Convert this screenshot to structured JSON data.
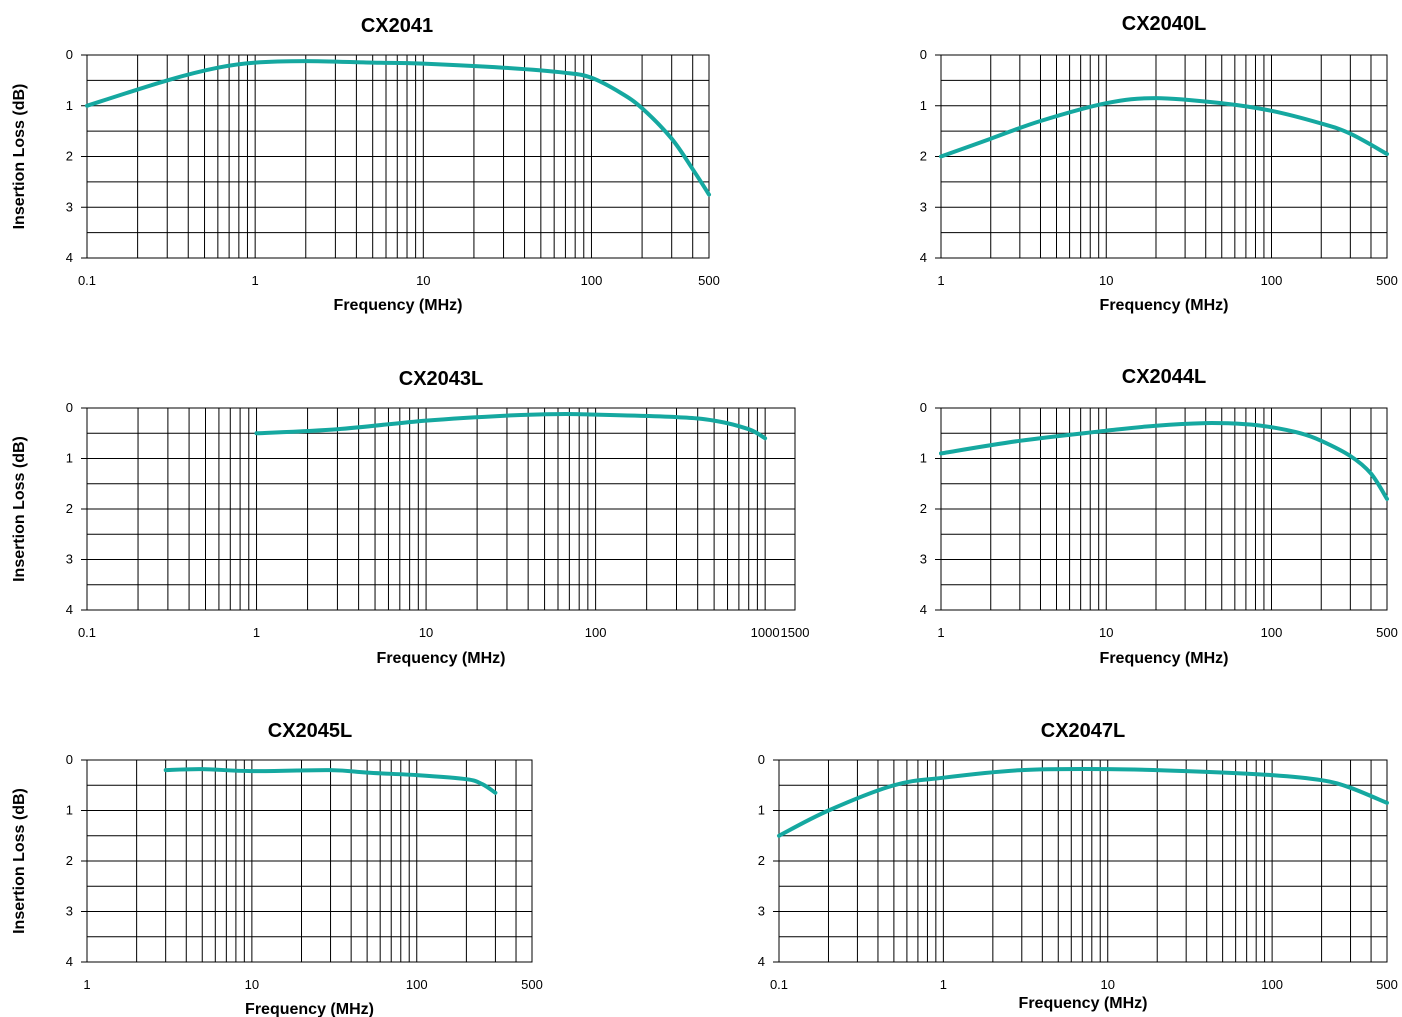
{
  "colors": {
    "line": "#15a8a0",
    "grid": "#000000"
  },
  "chart_data": [
    {
      "type": "line",
      "title": "CX2041",
      "xlabel": "Frequency (MHz)",
      "ylabel": "Insertion Loss (dB)",
      "x_scale": "log",
      "xlim": [
        0.1,
        500
      ],
      "ylim": [
        0,
        4
      ],
      "y_inverted": true,
      "grid": true,
      "x_tick_labels": [
        "0.1",
        "1",
        "10",
        "100",
        "500"
      ],
      "y_tick_labels": [
        "0",
        "1",
        "2",
        "3",
        "4"
      ],
      "series": [
        {
          "x": [
            0.1,
            0.3,
            0.6,
            1,
            2,
            5,
            10,
            30,
            70,
            100,
            150,
            200,
            300,
            400,
            500
          ],
          "y": [
            1.0,
            0.5,
            0.25,
            0.15,
            0.12,
            0.15,
            0.17,
            0.25,
            0.35,
            0.45,
            0.75,
            1.05,
            1.65,
            2.25,
            2.75
          ]
        }
      ]
    },
    {
      "type": "line",
      "title": "CX2040L",
      "xlabel": "Frequency (MHz)",
      "ylabel": "",
      "x_scale": "log",
      "xlim": [
        1,
        500
      ],
      "ylim": [
        0,
        4
      ],
      "y_inverted": true,
      "grid": true,
      "x_tick_labels": [
        "1",
        "10",
        "100",
        "500"
      ],
      "y_tick_labels": [
        "0",
        "1",
        "2",
        "3",
        "4"
      ],
      "series": [
        {
          "x": [
            1,
            2,
            4,
            10,
            20,
            50,
            100,
            200,
            300,
            500
          ],
          "y": [
            2.0,
            1.65,
            1.3,
            0.95,
            0.85,
            0.95,
            1.1,
            1.35,
            1.55,
            1.95
          ]
        }
      ]
    },
    {
      "type": "line",
      "title": "CX2043L",
      "xlabel": "Frequency (MHz)",
      "ylabel": "Insertion Loss (dB)",
      "x_scale": "log",
      "xlim": [
        0.1,
        1500
      ],
      "ylim": [
        0,
        4
      ],
      "y_inverted": true,
      "grid": true,
      "x_tick_labels": [
        "0.1",
        "1",
        "10",
        "100",
        "1000",
        "1500"
      ],
      "y_tick_labels": [
        "0",
        "1",
        "2",
        "3",
        "4"
      ],
      "series": [
        {
          "x": [
            1,
            3,
            10,
            30,
            60,
            100,
            300,
            500,
            800,
            1000
          ],
          "y": [
            0.5,
            0.42,
            0.25,
            0.15,
            0.12,
            0.13,
            0.18,
            0.25,
            0.42,
            0.6
          ]
        }
      ]
    },
    {
      "type": "line",
      "title": "CX2044L",
      "xlabel": "Frequency (MHz)",
      "ylabel": "",
      "x_scale": "log",
      "xlim": [
        1,
        500
      ],
      "ylim": [
        0,
        4
      ],
      "y_inverted": true,
      "grid": true,
      "x_tick_labels": [
        "1",
        "10",
        "100",
        "500"
      ],
      "y_tick_labels": [
        "0",
        "1",
        "2",
        "3",
        "4"
      ],
      "series": [
        {
          "x": [
            1,
            3,
            10,
            20,
            40,
            70,
            100,
            150,
            200,
            300,
            400,
            500
          ],
          "y": [
            0.9,
            0.65,
            0.45,
            0.35,
            0.3,
            0.32,
            0.38,
            0.5,
            0.65,
            0.95,
            1.3,
            1.8
          ]
        }
      ]
    },
    {
      "type": "line",
      "title": "CX2045L",
      "xlabel": "Frequency (MHz)",
      "ylabel": "Insertion Loss (dB)",
      "x_scale": "log",
      "xlim": [
        1,
        500
      ],
      "ylim": [
        0,
        4
      ],
      "y_inverted": true,
      "grid": true,
      "x_tick_labels": [
        "1",
        "10",
        "100",
        "500"
      ],
      "y_tick_labels": [
        "0",
        "1",
        "2",
        "3",
        "4"
      ],
      "series": [
        {
          "x": [
            3,
            5,
            10,
            30,
            50,
            100,
            200,
            250,
            300
          ],
          "y": [
            0.2,
            0.18,
            0.22,
            0.2,
            0.25,
            0.3,
            0.38,
            0.48,
            0.65
          ]
        }
      ]
    },
    {
      "type": "line",
      "title": "CX2047L",
      "xlabel": "Frequency (MHz)",
      "ylabel": "",
      "x_scale": "log",
      "xlim": [
        0.1,
        500
      ],
      "ylim": [
        0,
        4
      ],
      "y_inverted": true,
      "grid": true,
      "x_tick_labels": [
        "0.1",
        "1",
        "10",
        "100",
        "500"
      ],
      "y_tick_labels": [
        "0",
        "1",
        "2",
        "3",
        "4"
      ],
      "series": [
        {
          "x": [
            0.1,
            0.2,
            0.5,
            1,
            3,
            10,
            30,
            100,
            200,
            300,
            500
          ],
          "y": [
            1.5,
            1.0,
            0.5,
            0.35,
            0.2,
            0.18,
            0.22,
            0.3,
            0.4,
            0.55,
            0.85
          ]
        }
      ]
    }
  ]
}
